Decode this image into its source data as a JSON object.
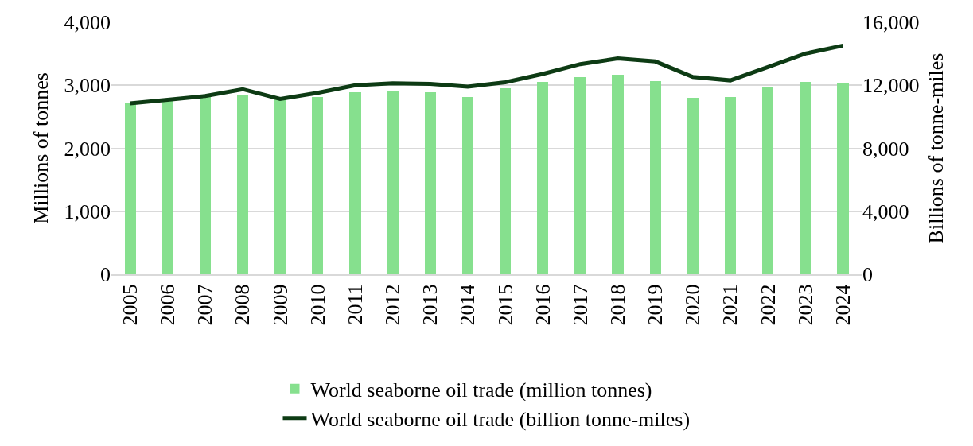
{
  "chart_data": {
    "type": "bar",
    "ylabel": "Millions of tonnes",
    "y2label": "Billions of tonne-miles",
    "categories": [
      "2005",
      "2006",
      "2007",
      "2008",
      "2009",
      "2010",
      "2011",
      "2012",
      "2013",
      "2014",
      "2015",
      "2016",
      "2017",
      "2018",
      "2019",
      "2020",
      "2021",
      "2022",
      "2023",
      "2024"
    ],
    "series": [
      {
        "name": "World seaborne oil trade (million tonnes)",
        "color": "#86e08e",
        "values": [
          2710,
          2750,
          2810,
          2850,
          2770,
          2810,
          2890,
          2900,
          2890,
          2820,
          2950,
          3060,
          3130,
          3170,
          3070,
          2800,
          2820,
          2980,
          3050,
          3040
        ]
      },
      {
        "name": "World seaborne oil trade (billion tonne-miles)",
        "type": "line",
        "axis": "y2",
        "color": "#0d3b14",
        "values": [
          10850,
          11080,
          11320,
          11750,
          11130,
          11520,
          12000,
          12120,
          12090,
          11910,
          12190,
          12720,
          13340,
          13700,
          13510,
          12530,
          12310,
          13150,
          14010,
          14520
        ]
      }
    ],
    "ylim": [
      0,
      4000
    ],
    "yticks": [
      {
        "value": 0,
        "label": "0"
      },
      {
        "value": 1000,
        "label": "1,000"
      },
      {
        "value": 2000,
        "label": "2,000"
      },
      {
        "value": 3000,
        "label": "3,000"
      },
      {
        "value": 4000,
        "label": "4,000"
      }
    ],
    "y2lim": [
      0,
      16000
    ],
    "y2ticks": [
      {
        "value": 0,
        "label": "0"
      },
      {
        "value": 4000,
        "label": "4,000"
      },
      {
        "value": 8000,
        "label": "8,000"
      },
      {
        "value": 12000,
        "label": "12,000"
      },
      {
        "value": 16000,
        "label": "16,000"
      }
    ],
    "grid": "y",
    "legend": "bottom",
    "marker": "none",
    "line_style": "solid"
  }
}
